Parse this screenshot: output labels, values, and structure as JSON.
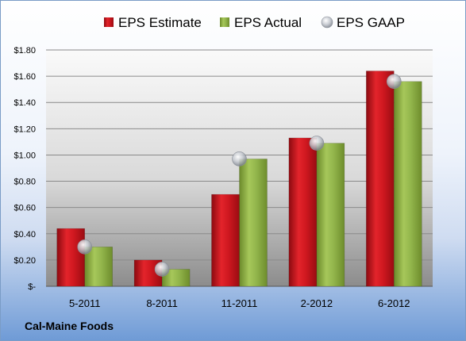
{
  "footer_label": "Cal-Maine Foods",
  "chart_data": {
    "type": "bar",
    "title": "",
    "xlabel": "",
    "ylabel": "",
    "categories": [
      "5-2011",
      "8-2011",
      "11-2011",
      "2-2012",
      "6-2012"
    ],
    "series": [
      {
        "name": "EPS Estimate",
        "kind": "bar",
        "color": "#c8141c",
        "values": [
          0.44,
          0.2,
          0.7,
          1.13,
          1.64
        ]
      },
      {
        "name": "EPS Actual",
        "kind": "bar",
        "color": "#8fb04a",
        "values": [
          0.3,
          0.13,
          0.97,
          1.09,
          1.56
        ]
      },
      {
        "name": "EPS GAAP",
        "kind": "marker",
        "color": "#b9bec6",
        "values": [
          0.3,
          0.13,
          0.97,
          1.09,
          1.56
        ]
      }
    ],
    "ylim": [
      0,
      1.8
    ],
    "yticks": [
      0,
      0.2,
      0.4,
      0.6,
      0.8,
      1.0,
      1.2,
      1.4,
      1.6,
      1.8
    ],
    "ytick_labels": [
      "$-",
      "$0.20",
      "$0.40",
      "$0.60",
      "$0.80",
      "$1.00",
      "$1.20",
      "$1.40",
      "$1.60",
      "$1.80"
    ],
    "grid": true,
    "legend_position": "top"
  }
}
